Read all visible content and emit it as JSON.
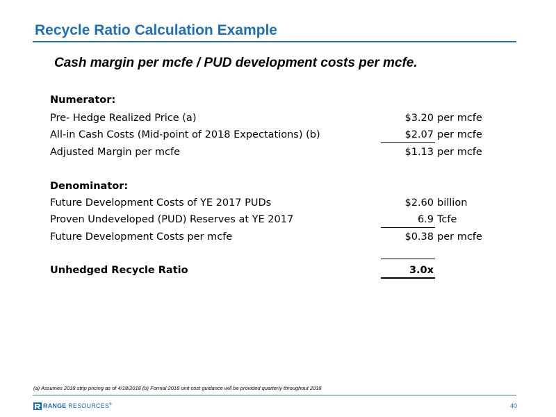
{
  "slide": {
    "title": "Recycle Ratio Calculation Example",
    "subtitle": "Cash margin per mcfe / PUD development costs per mcfe."
  },
  "numerator": {
    "heading": "Numerator:",
    "rows": [
      {
        "label": "Pre- Hedge Realized Price (a)",
        "value": "$3.20",
        "unit": "per mcfe"
      },
      {
        "label": "All-in Cash Costs (Mid-point of 2018 Expectations) (b)",
        "value": "$2.07",
        "unit": "per mcfe"
      },
      {
        "label": "Adjusted Margin per mcfe",
        "value": "$1.13",
        "unit": "per mcfe"
      }
    ]
  },
  "denominator": {
    "heading": "Denominator:",
    "rows": [
      {
        "label": "Future Development Costs of YE 2017 PUDs",
        "value": "$2.60",
        "unit": "billion"
      },
      {
        "label": "Proven Undeveloped (PUD) Reserves at YE 2017",
        "value": "6.9",
        "unit": "Tcfe"
      },
      {
        "label": "Future Development Costs per mcfe",
        "value": "$0.38",
        "unit": "per mcfe"
      }
    ]
  },
  "result": {
    "label": "Unhedged Recycle Ratio",
    "value": "3.0x"
  },
  "footnote": "(a) Assumes 2018 strip pricing as of 4/18/2018  (b) Formal 2018 unit cost guidance will be provided quarterly throughout 2018",
  "footer": {
    "logo_bold": "RANGE",
    "logo_light": "RESOURCES",
    "logo_mark": "®",
    "page_number": "40"
  },
  "colors": {
    "accent": "#1f6fb5",
    "text": "#000000"
  }
}
